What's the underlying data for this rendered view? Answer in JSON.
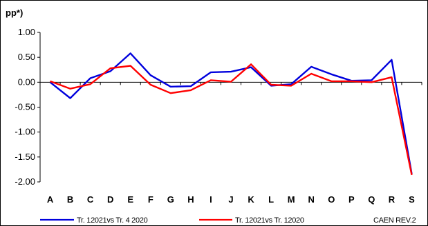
{
  "chart_data": {
    "type": "line",
    "ylabel": "pp*)",
    "ylim": [
      -2.0,
      1.0
    ],
    "yticks": [
      1.0,
      0.5,
      0.0,
      -0.5,
      -1.0,
      -1.5,
      -2.0
    ],
    "ytick_labels": [
      "1.00",
      "0.50",
      "0.00",
      "-0.50",
      "-1.00",
      "-1.50",
      "-2.00"
    ],
    "categories": [
      "A",
      "B",
      "C",
      "D",
      "E",
      "F",
      "G",
      "H",
      "I",
      "J",
      "K",
      "L",
      "M",
      "N",
      "O",
      "P",
      "Q",
      "R",
      "S"
    ],
    "series": [
      {
        "name": "Tr. 12021vs Tr. 4 2020",
        "color": "#0000dd",
        "values": [
          0.0,
          -0.32,
          0.08,
          0.22,
          0.58,
          0.14,
          -0.09,
          -0.08,
          0.2,
          0.21,
          0.3,
          -0.07,
          -0.04,
          0.31,
          0.16,
          0.03,
          0.04,
          0.45,
          -1.84
        ]
      },
      {
        "name": "Tr. 12021vs Tr. 12020",
        "color": "#ff0000",
        "values": [
          0.02,
          -0.13,
          -0.04,
          0.28,
          0.33,
          -0.05,
          -0.22,
          -0.16,
          0.04,
          0.01,
          0.36,
          -0.05,
          -0.07,
          0.17,
          0.02,
          0.02,
          0.0,
          0.1,
          -1.86
        ]
      }
    ],
    "grid": false,
    "legend_position": "bottom",
    "annotation": "CAEN REV.2"
  }
}
